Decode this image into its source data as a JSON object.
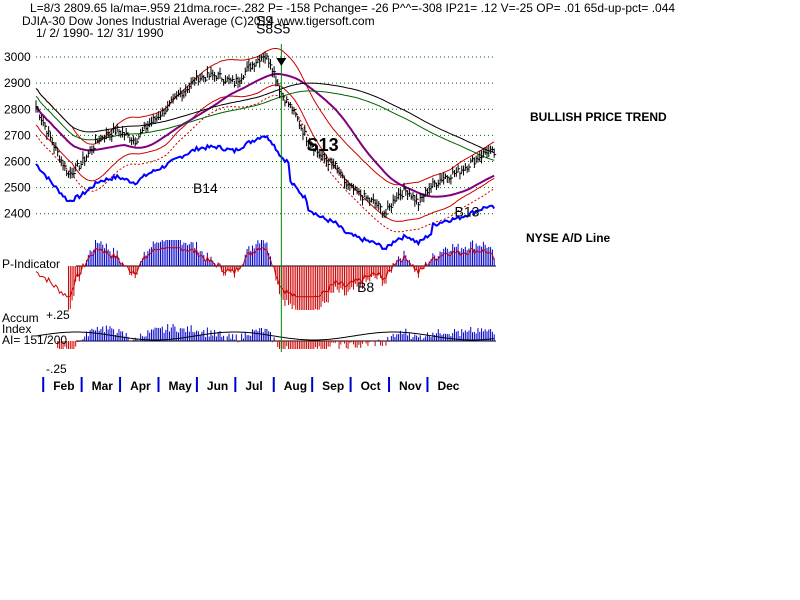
{
  "header": {
    "line1": "L=8/3   2809.65  la/ma=.959 21dma.roc=-.282 P= -158 Pchange= -26 P^^=-308 IP21= .12 V=-25 OP= .01 65d-up-pct= .044",
    "line2": "DJIA-30  Dow Jones Industrial Average   (C)2014 www.tigersoft.com",
    "line3": "1/ 2/ 1990- 12/ 31/ 1990"
  },
  "side_labels": {
    "trend": "BULLISH PRICE TREND",
    "ad_line": "NYSE A/D Line"
  },
  "panel_labels": {
    "p_indicator": "P-Indicator",
    "accum": "Accum",
    "index": "Index",
    "ai": "AI= 151/200",
    "plus": "+.25",
    "minus": "-.25"
  },
  "colors": {
    "price_bar": "#000000",
    "ad_line": "#0000ff",
    "band": "#cc0000",
    "ma_purple": "#800080",
    "ma_green": "#006400",
    "p_neg": "#cc0000",
    "p_pos": "#0000cc",
    "grid": "#006400",
    "signal_line": "#008000"
  },
  "chart_data": {
    "type": "ohlc",
    "price_axis": {
      "ticks": [
        3000,
        2900,
        2800,
        2700,
        2600,
        2500,
        2400
      ],
      "range": [
        2330,
        3050
      ]
    },
    "months": [
      "Feb",
      "Mar",
      "Apr",
      "May",
      "Jun",
      "Jul",
      "Aug",
      "Sep",
      "Oct",
      "Nov",
      "Dec"
    ],
    "price_keypoints": [
      [
        0,
        2810
      ],
      [
        10,
        2660
      ],
      [
        18,
        2550
      ],
      [
        25,
        2590
      ],
      [
        35,
        2690
      ],
      [
        45,
        2720
      ],
      [
        55,
        2680
      ],
      [
        62,
        2740
      ],
      [
        72,
        2800
      ],
      [
        80,
        2860
      ],
      [
        90,
        2920
      ],
      [
        100,
        2930
      ],
      [
        110,
        2900
      ],
      [
        118,
        2960
      ],
      [
        126,
        3010
      ],
      [
        130,
        2980
      ],
      [
        136,
        2860
      ],
      [
        142,
        2800
      ],
      [
        150,
        2690
      ],
      [
        158,
        2620
      ],
      [
        166,
        2580
      ],
      [
        172,
        2510
      ],
      [
        180,
        2470
      ],
      [
        188,
        2440
      ],
      [
        194,
        2400
      ],
      [
        200,
        2470
      ],
      [
        206,
        2490
      ],
      [
        212,
        2440
      ],
      [
        218,
        2500
      ],
      [
        226,
        2540
      ],
      [
        234,
        2560
      ],
      [
        242,
        2600
      ],
      [
        250,
        2640
      ],
      [
        254,
        2630
      ]
    ],
    "annotations": [
      {
        "text": "S13",
        "day": 150,
        "price": 2640,
        "bold": true
      },
      {
        "text": "S8S5",
        "day": 122,
        "price": 3090,
        "bold": false
      },
      {
        "text": "S9",
        "day": 122,
        "price": 3120,
        "bold": false
      },
      {
        "text": "B14",
        "day": 87,
        "price": 2480,
        "bold": false
      },
      {
        "text": "B13",
        "day": 232,
        "price": 2390,
        "bold": false
      },
      {
        "text": "B8",
        "day": 178,
        "price": 0,
        "bold": false
      }
    ],
    "signal_day": 136
  }
}
